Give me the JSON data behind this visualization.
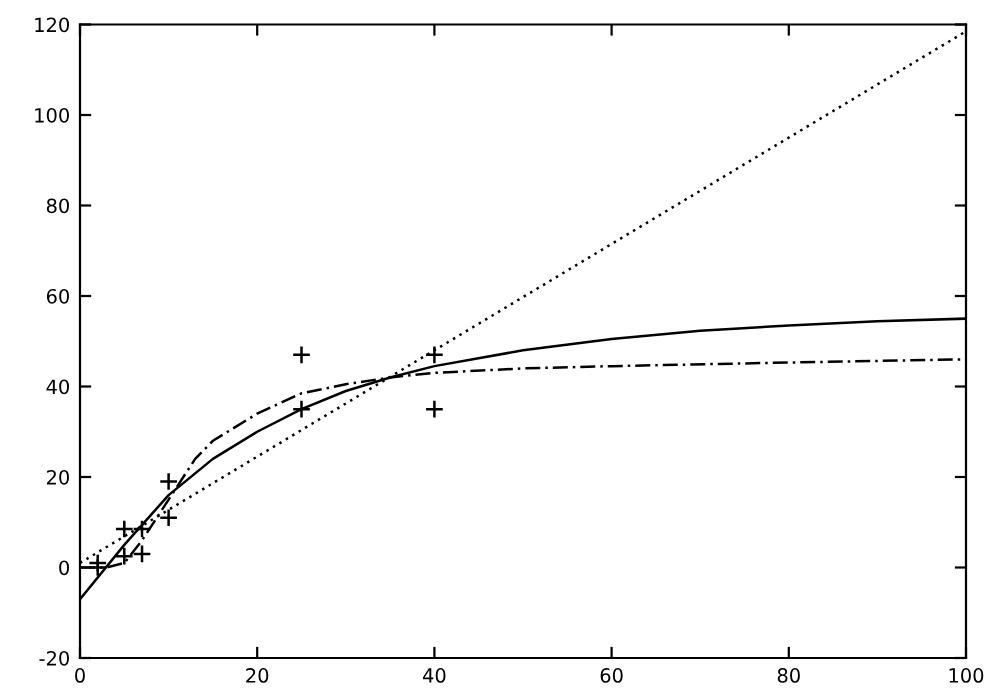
{
  "chart_data": {
    "type": "line",
    "xlim": [
      0,
      100
    ],
    "ylim": [
      -20,
      120
    ],
    "xticks": [
      0,
      20,
      40,
      60,
      80,
      100
    ],
    "yticks": [
      -20,
      0,
      20,
      40,
      60,
      80,
      100,
      120
    ],
    "grid": false,
    "legend": false,
    "series": [
      {
        "type": "scatter",
        "marker": "cross",
        "color": "#000000",
        "x": [
          2,
          2,
          5,
          5,
          7,
          7,
          10,
          10,
          25,
          25,
          40,
          40
        ],
        "values": [
          1,
          0,
          8.5,
          2.5,
          8.5,
          3,
          19,
          11,
          47,
          35,
          47,
          35
        ]
      },
      {
        "line_style": "solid",
        "color": "#000000",
        "x": [
          0,
          5,
          10,
          15,
          20,
          25,
          30,
          35,
          40,
          50,
          60,
          70,
          80,
          90,
          100
        ],
        "values": [
          -7,
          5,
          16,
          24,
          30,
          35,
          39,
          42,
          44.5,
          48,
          50.5,
          52.3,
          53.5,
          54.4,
          55
        ]
      },
      {
        "line_style": "dotted",
        "color": "#000000",
        "x": [
          0,
          100
        ],
        "values": [
          1,
          118.5
        ]
      },
      {
        "line_style": "dashed",
        "color": "#000000",
        "x": [
          0,
          3,
          5,
          7,
          10,
          13,
          15,
          20,
          25,
          30,
          35,
          40,
          50,
          60,
          80,
          100
        ],
        "values": [
          0,
          0,
          1,
          6,
          15,
          24,
          28,
          34,
          38.5,
          40.5,
          42,
          43,
          44,
          44.5,
          45.3,
          46
        ]
      }
    ]
  }
}
